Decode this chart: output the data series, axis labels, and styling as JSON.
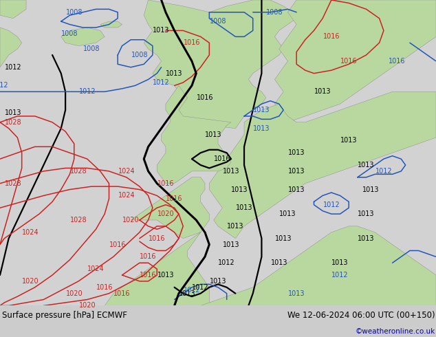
{
  "title_left": "Surface pressure [hPa] ECMWF",
  "title_right": "We 12-06-2024 06:00 UTC (00+150)",
  "credit": "©weatheronline.co.uk",
  "fig_width": 6.34,
  "fig_height": 4.9,
  "dpi": 100,
  "sea_color": "#d2d2d2",
  "land_color": "#b8d8a0",
  "land_color2": "#c8e0b0",
  "footer_bg": "#d8d8d8",
  "title_color": "#000000",
  "credit_color": "#0000bb",
  "title_fontsize": 8.5,
  "credit_fontsize": 7.5,
  "black_lw": 1.6,
  "blue_lw": 1.1,
  "red_lw": 1.1,
  "label_fontsize": 7.0,
  "black_thick_lw": 2.2
}
